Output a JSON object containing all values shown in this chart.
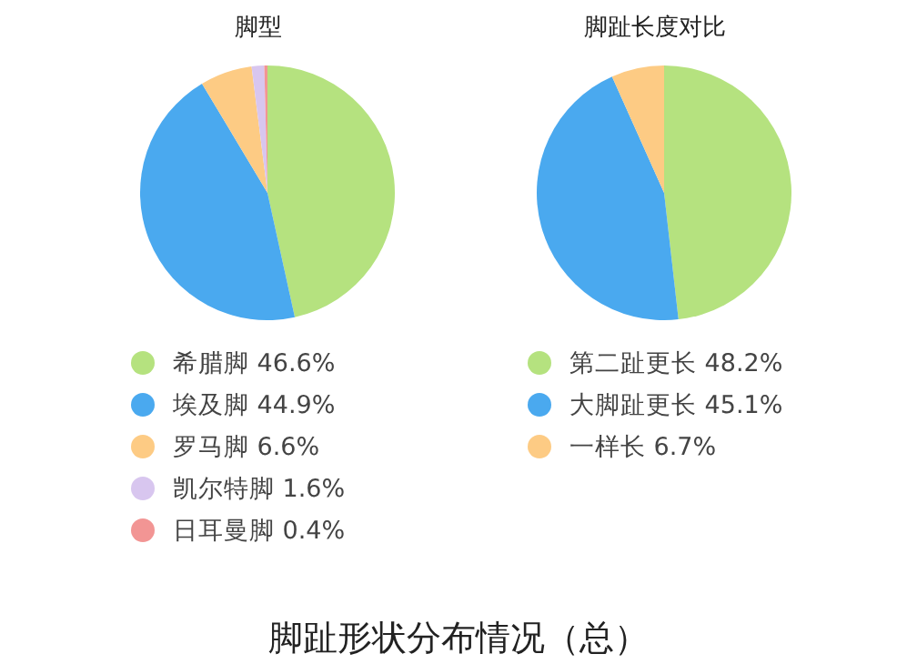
{
  "chart_data": [
    {
      "type": "pie",
      "title": "脚型",
      "categories": [
        "希腊脚",
        "埃及脚",
        "罗马脚",
        "凯尔特脚",
        "日耳曼脚"
      ],
      "values": [
        46.6,
        44.9,
        6.6,
        1.6,
        0.4
      ],
      "value_labels": [
        "46.6%",
        "44.9%",
        "6.6%",
        "1.6%",
        "0.4%"
      ],
      "colors": [
        "#b5e27f",
        "#4aa9ef",
        "#fdcb84",
        "#d8c6ef",
        "#f29594"
      ],
      "legend": "bottom",
      "annotations": [
        "脚趾形状分布情况（总）"
      ]
    },
    {
      "type": "pie",
      "title": "脚趾长度对比",
      "categories": [
        "第二趾更长",
        "大脚趾更长",
        "一样长"
      ],
      "values": [
        48.2,
        45.1,
        6.7
      ],
      "value_labels": [
        "48.2%",
        "45.1%",
        "6.7%"
      ],
      "colors": [
        "#b5e27f",
        "#4aa9ef",
        "#fdcb84"
      ],
      "legend": "bottom"
    }
  ]
}
